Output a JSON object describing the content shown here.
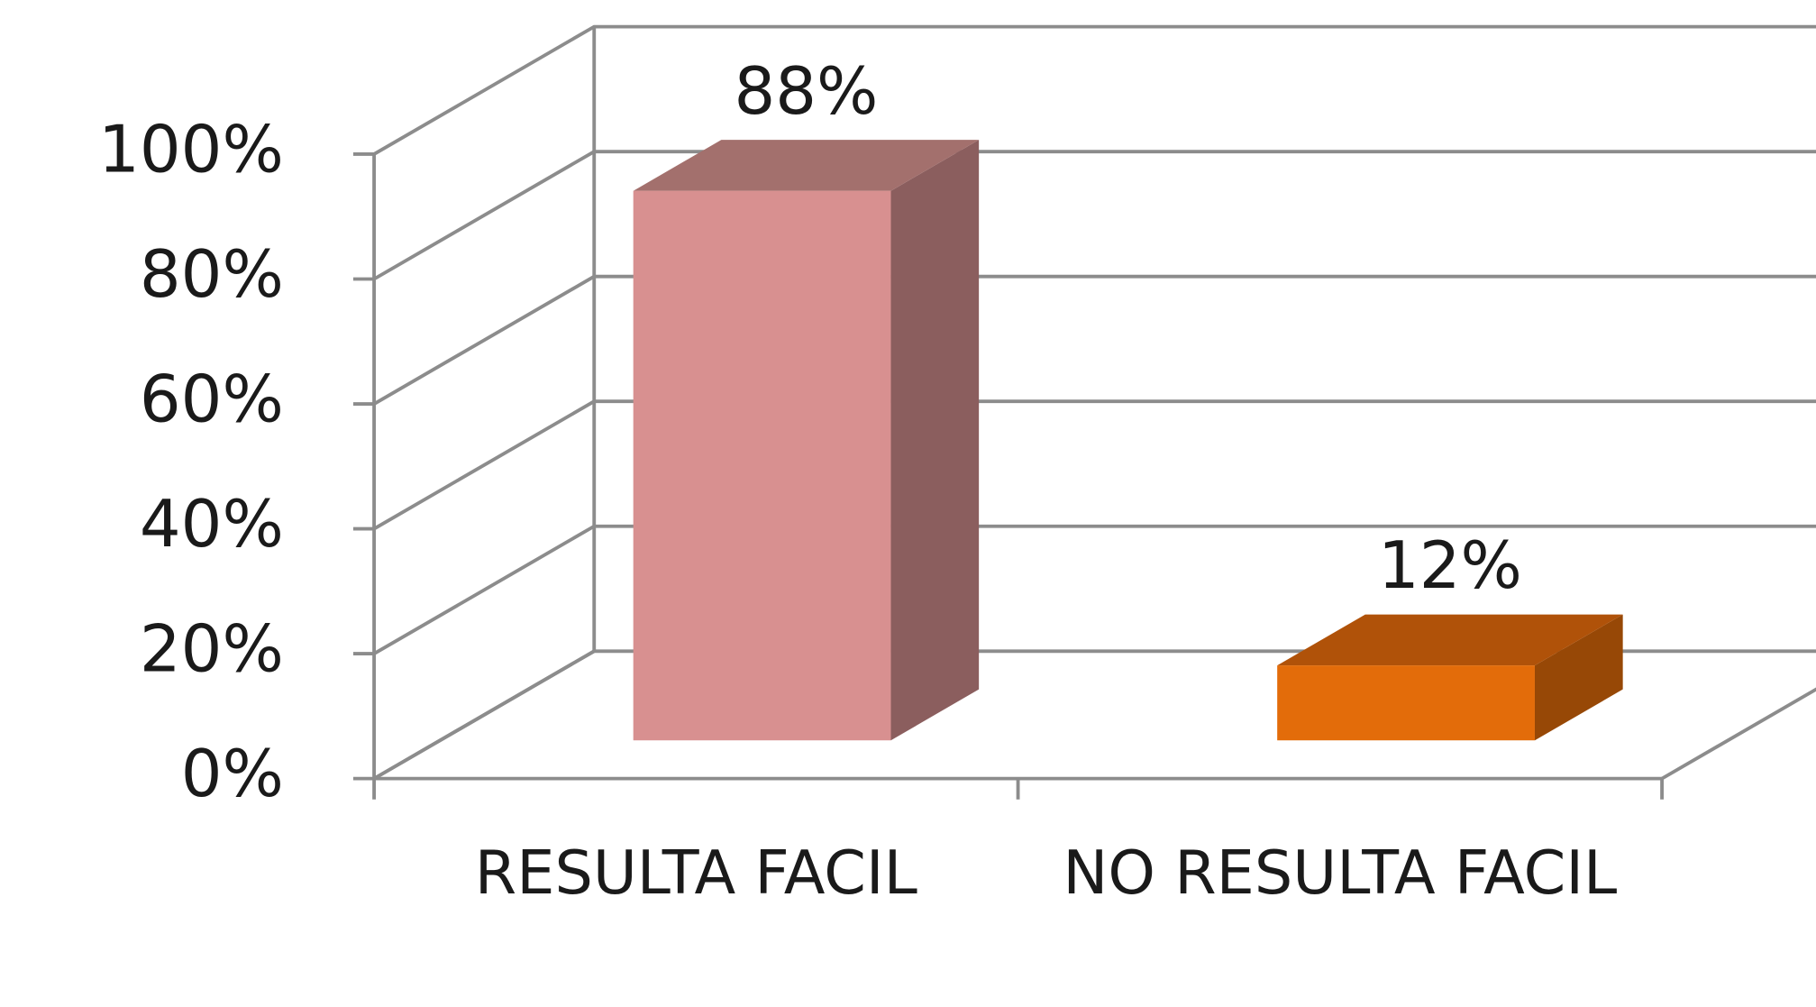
{
  "chart_data": {
    "type": "bar3d",
    "categories": [
      "RESULTA FACIL",
      "NO RESULTA FACIL"
    ],
    "series": [
      {
        "name": null,
        "values": [
          88,
          12
        ],
        "value_labels": [
          "88%",
          "12%"
        ]
      }
    ],
    "colors": [
      {
        "front": "#d89090",
        "side": "#8b5e5e",
        "top": "#a3706d"
      },
      {
        "front": "#e36c0a",
        "side": "#974806",
        "top": "#b05209"
      }
    ],
    "ylim": [
      0,
      100
    ],
    "yticks": [
      {
        "value": 0,
        "label": "0%"
      },
      {
        "value": 20,
        "label": "20%"
      },
      {
        "value": 40,
        "label": "40%"
      },
      {
        "value": 60,
        "label": "60%"
      },
      {
        "value": 80,
        "label": "80%"
      },
      {
        "value": 100,
        "label": "100%"
      }
    ],
    "grid": true
  }
}
